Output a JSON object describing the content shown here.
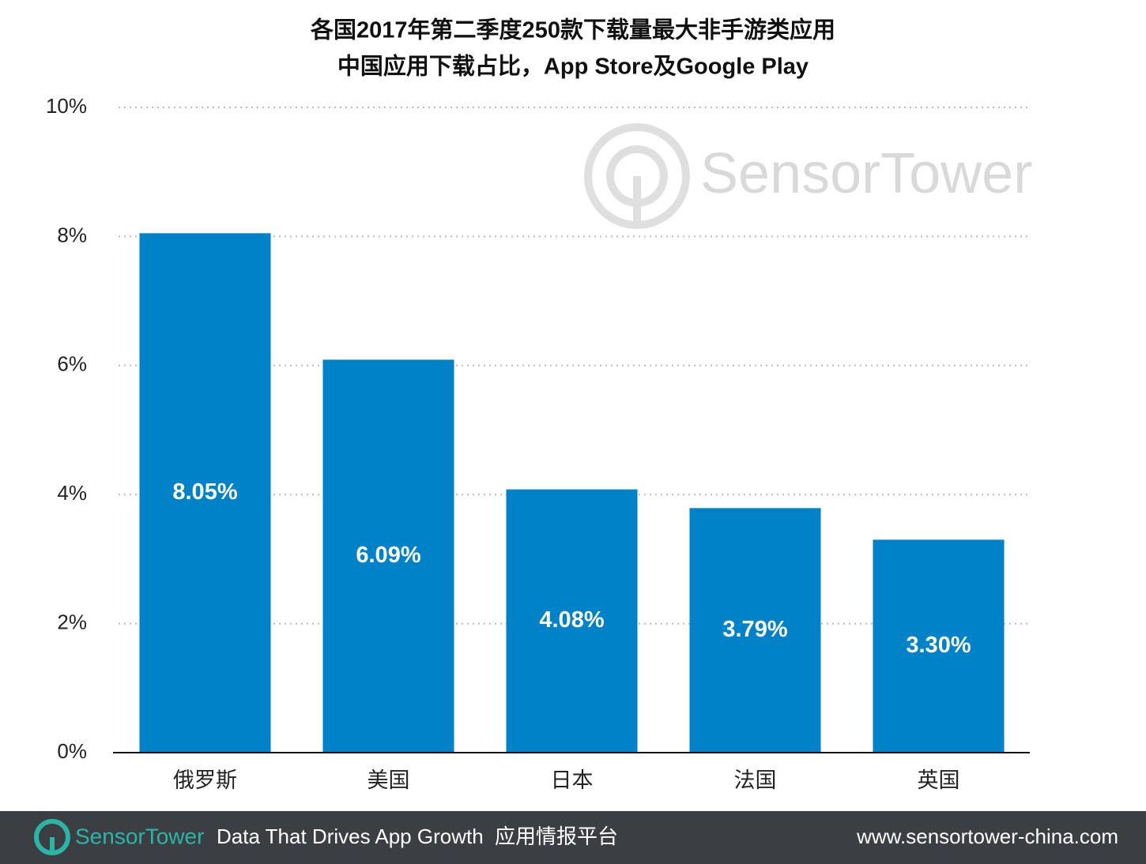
{
  "chart_data": {
    "type": "bar",
    "title": [
      "各国2017年第二季度250款下载量最大非手游类应用",
      "中国应用下载占比，App Store及Google Play"
    ],
    "categories": [
      "俄罗斯",
      "美国",
      "日本",
      "法国",
      "英国"
    ],
    "values": [
      8.05,
      6.09,
      4.08,
      3.79,
      3.3
    ],
    "value_labels": [
      "8.05%",
      "6.09%",
      "4.08%",
      "3.79%",
      "3.30%"
    ],
    "color": "#0082c8",
    "ylim": [
      0,
      10
    ],
    "yticks": [
      {
        "value": 0,
        "label": "0%"
      },
      {
        "value": 2,
        "label": "2%"
      },
      {
        "value": 4,
        "label": "4%"
      },
      {
        "value": 6,
        "label": "6%"
      },
      {
        "value": 8,
        "label": "8%"
      },
      {
        "value": 10,
        "label": "10%"
      }
    ],
    "grid": true,
    "watermark": "SensorTower"
  },
  "footer": {
    "brand": "SensorTower",
    "tagline": "Data That Drives App Growth",
    "tagline_cn": "应用情报平台",
    "url": "www.sensortower-china.com"
  }
}
